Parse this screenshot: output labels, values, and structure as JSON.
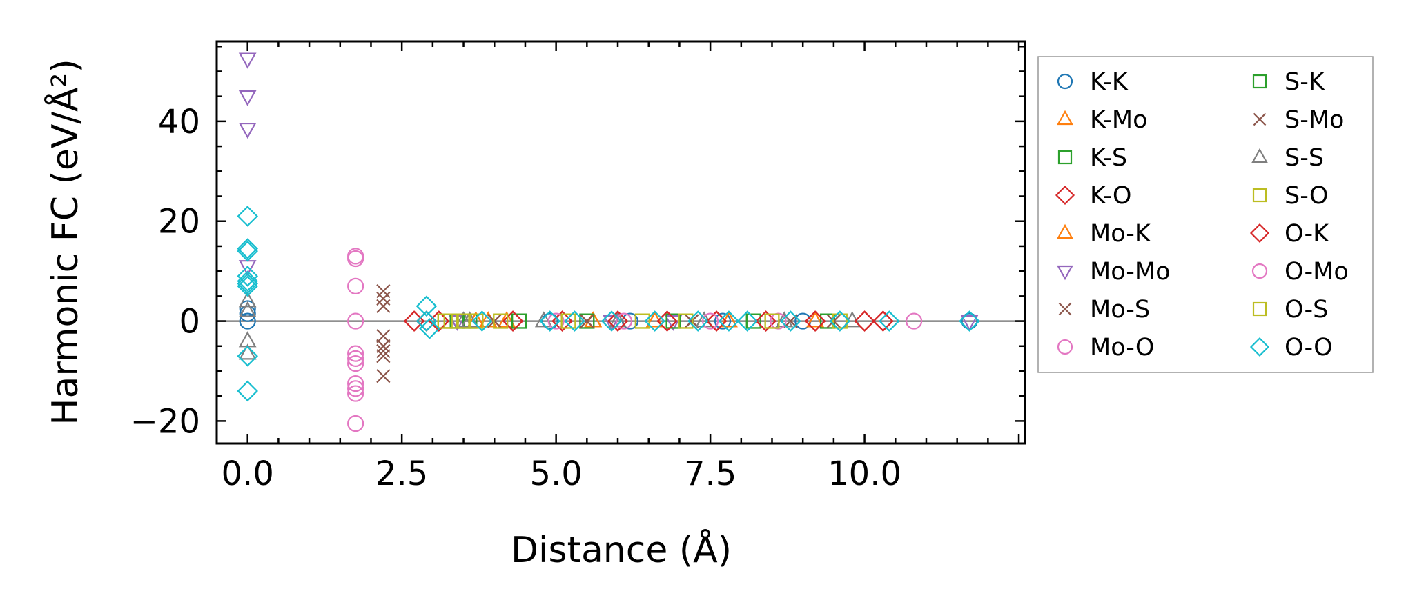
{
  "chart_data": {
    "type": "scatter",
    "xlabel": "Distance (Å)",
    "ylabel": "Harmonic FC (eV/Å²)",
    "xlim": [
      -0.5,
      12.6
    ],
    "ylim": [
      -24.5,
      56
    ],
    "xticks": [
      {
        "value": 0.0,
        "label": "0.0"
      },
      {
        "value": 2.5,
        "label": "2.5"
      },
      {
        "value": 5.0,
        "label": "5.0"
      },
      {
        "value": 7.5,
        "label": "7.5"
      },
      {
        "value": 10.0,
        "label": "10.0"
      }
    ],
    "yticks": [
      {
        "value": -20,
        "label": "−20"
      },
      {
        "value": 0,
        "label": "0"
      },
      {
        "value": 20,
        "label": "20"
      },
      {
        "value": 40,
        "label": "40"
      }
    ],
    "zero_line": true,
    "legend_position": "outside-right",
    "series": [
      {
        "name": "K-K",
        "marker": "circle",
        "color": "#1f77b4",
        "x": [
          0,
          0,
          0,
          4.9,
          6.2,
          7.7,
          9.0,
          11.7
        ],
        "y": [
          0,
          1.5,
          2.5,
          0,
          0,
          0,
          0,
          0
        ]
      },
      {
        "name": "K-Mo",
        "marker": "triangle-up",
        "color": "#ff7f0e",
        "x": [
          3.7,
          3.9,
          4.2,
          5.6,
          6.6,
          7.8,
          9.2
        ],
        "y": [
          0,
          0,
          0,
          0,
          0,
          0,
          0
        ]
      },
      {
        "name": "K-S",
        "marker": "square",
        "color": "#2ca02c",
        "x": [
          3.4,
          3.6,
          4.4,
          5.5,
          6.9,
          8.2,
          9.4
        ],
        "y": [
          0,
          0,
          0,
          0,
          0,
          0,
          0
        ]
      },
      {
        "name": "K-O",
        "marker": "diamond",
        "color": "#d62728",
        "x": [
          2.7,
          2.9,
          3.1,
          4.3,
          5.1,
          6.0,
          6.8,
          7.6,
          8.4,
          9.2,
          10.0,
          10.3
        ],
        "y": [
          0,
          0,
          0,
          0,
          0,
          0,
          0,
          0,
          0,
          0,
          0,
          0
        ]
      },
      {
        "name": "Mo-K",
        "marker": "triangle-up",
        "color": "#ff7f0e",
        "x": [
          3.7,
          3.9,
          4.2,
          5.6,
          6.6,
          7.8,
          9.2
        ],
        "y": [
          0,
          0,
          0,
          0,
          0,
          0,
          0
        ]
      },
      {
        "name": "Mo-Mo",
        "marker": "triangle-down",
        "color": "#9467bd",
        "x": [
          0,
          0,
          0,
          0,
          3.4,
          5.9,
          6.9,
          11.7
        ],
        "y": [
          52.5,
          45,
          38.5,
          11,
          0,
          0,
          0,
          0
        ]
      },
      {
        "name": "Mo-S",
        "marker": "x",
        "color": "#8c564b",
        "x": [
          2.2,
          2.2,
          2.2,
          2.2,
          2.2,
          2.2,
          2.2,
          2.2,
          4.0,
          5.5,
          7.2,
          8.8
        ],
        "y": [
          6,
          4.5,
          3,
          -3,
          -5,
          -6,
          -7,
          -11,
          0,
          0,
          0,
          0
        ]
      },
      {
        "name": "Mo-O",
        "marker": "circle",
        "color": "#e377c2",
        "x": [
          1.75,
          1.75,
          1.75,
          1.75,
          1.75,
          1.75,
          1.75,
          1.75,
          1.75,
          1.75,
          1.75
        ],
        "y": [
          13,
          12.5,
          7,
          -6.5,
          -7.5,
          -8.5,
          -12.5,
          -13.5,
          -14.5,
          -20.5,
          0
        ]
      },
      {
        "name": "S-K",
        "marker": "square",
        "color": "#2ca02c",
        "x": [
          3.4,
          3.6,
          4.4,
          5.5,
          6.9,
          8.2,
          9.4
        ],
        "y": [
          0,
          0,
          0,
          0,
          0,
          0,
          0
        ]
      },
      {
        "name": "S-Mo",
        "marker": "x",
        "color": "#8c564b",
        "x": [
          4.0,
          5.5,
          7.2,
          8.8,
          9.5
        ],
        "y": [
          0,
          0,
          0,
          0,
          0
        ]
      },
      {
        "name": "S-S",
        "marker": "triangle-up",
        "color": "#7f7f7f",
        "x": [
          0,
          0,
          0,
          0,
          3.5,
          3.6,
          4.8,
          6.0,
          7.4,
          8.7,
          9.8
        ],
        "y": [
          4,
          2,
          -4,
          -6.5,
          0,
          0,
          0,
          0,
          0,
          0,
          0
        ]
      },
      {
        "name": "S-O",
        "marker": "square",
        "color": "#bcbd22",
        "x": [
          3.2,
          3.3,
          3.5,
          3.7,
          4.1,
          5.2,
          6.4,
          7.1,
          8.5,
          9.6
        ],
        "y": [
          0,
          0,
          0,
          0,
          0,
          0,
          0,
          0,
          0,
          0
        ]
      },
      {
        "name": "O-K",
        "marker": "diamond",
        "color": "#d62728",
        "x": [
          2.7,
          2.9,
          3.1,
          4.3,
          5.1,
          6.0,
          6.8,
          7.6,
          8.4,
          9.2,
          10.0,
          10.3
        ],
        "y": [
          0,
          0,
          0,
          0,
          0,
          0,
          0,
          0,
          0,
          0,
          0,
          0
        ]
      },
      {
        "name": "O-Mo",
        "marker": "circle",
        "color": "#e377c2",
        "x": [
          5.0,
          6.1,
          7.5,
          8.6,
          10.8
        ],
        "y": [
          0,
          0,
          0,
          0,
          0
        ]
      },
      {
        "name": "O-S",
        "marker": "square",
        "color": "#bcbd22",
        "x": [
          3.2,
          3.3,
          3.5,
          3.7,
          4.1,
          5.2,
          6.4,
          7.1,
          8.5,
          9.6
        ],
        "y": [
          0,
          0,
          0,
          0,
          0,
          0,
          0,
          0,
          0,
          0
        ]
      },
      {
        "name": "O-O",
        "marker": "diamond",
        "color": "#17becf",
        "x": [
          0,
          0,
          0,
          0,
          0,
          0,
          0,
          0,
          0,
          2.9,
          2.9,
          2.95,
          3.8,
          4.9,
          5.3,
          5.9,
          6.6,
          7.3,
          7.8,
          8.1,
          8.8,
          9.6,
          10.4,
          11.7
        ],
        "y": [
          21,
          14.5,
          14,
          9,
          8,
          7.5,
          7,
          -7,
          -14,
          3,
          0,
          -1.5,
          0,
          0,
          0,
          0,
          0,
          0,
          0,
          0,
          0,
          0,
          0,
          0
        ]
      }
    ]
  }
}
